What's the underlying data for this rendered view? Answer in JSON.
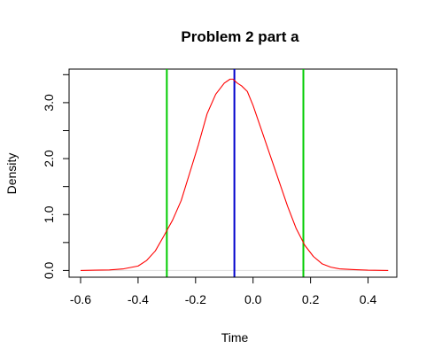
{
  "chart_data": {
    "type": "line",
    "title": "Problem 2 part a",
    "xlabel": "Time",
    "ylabel": "Density",
    "xlim": [
      -0.64,
      0.5
    ],
    "ylim": [
      -0.12,
      3.6
    ],
    "x_ticks": [
      -0.6,
      -0.4,
      -0.2,
      0.0,
      0.2,
      0.4
    ],
    "x_tick_labels": [
      "-0.6",
      "-0.4",
      "-0.2",
      "0.0",
      "0.2",
      "0.4"
    ],
    "y_ticks": [
      0.0,
      0.5,
      1.0,
      1.5,
      2.0,
      2.5,
      3.0,
      3.5
    ],
    "y_tick_labels": [
      "0.0",
      "",
      "1.0",
      "",
      "2.0",
      "",
      "3.0",
      ""
    ],
    "grid": false,
    "baseline": {
      "y": 0,
      "color": "#dddddd"
    },
    "series": [
      {
        "color": "#ff0000",
        "x": [
          -0.6,
          -0.55,
          -0.5,
          -0.45,
          -0.4,
          -0.37,
          -0.34,
          -0.31,
          -0.28,
          -0.25,
          -0.22,
          -0.19,
          -0.16,
          -0.13,
          -0.1,
          -0.08,
          -0.07,
          -0.055,
          -0.04,
          -0.02,
          0.0,
          0.03,
          0.06,
          0.09,
          0.12,
          0.15,
          0.18,
          0.21,
          0.24,
          0.27,
          0.3,
          0.35,
          0.4,
          0.47
        ],
        "y": [
          0.0,
          0.005,
          0.01,
          0.03,
          0.08,
          0.18,
          0.35,
          0.62,
          0.9,
          1.25,
          1.75,
          2.25,
          2.8,
          3.15,
          3.35,
          3.42,
          3.42,
          3.35,
          3.3,
          3.2,
          2.95,
          2.5,
          2.05,
          1.6,
          1.15,
          0.75,
          0.45,
          0.25,
          0.12,
          0.06,
          0.03,
          0.015,
          0.005,
          0.0
        ]
      }
    ],
    "vlines": [
      {
        "x": -0.3,
        "color": "#00cc00"
      },
      {
        "x": -0.065,
        "color": "#0000cc"
      },
      {
        "x": 0.175,
        "color": "#00cc00"
      }
    ]
  }
}
